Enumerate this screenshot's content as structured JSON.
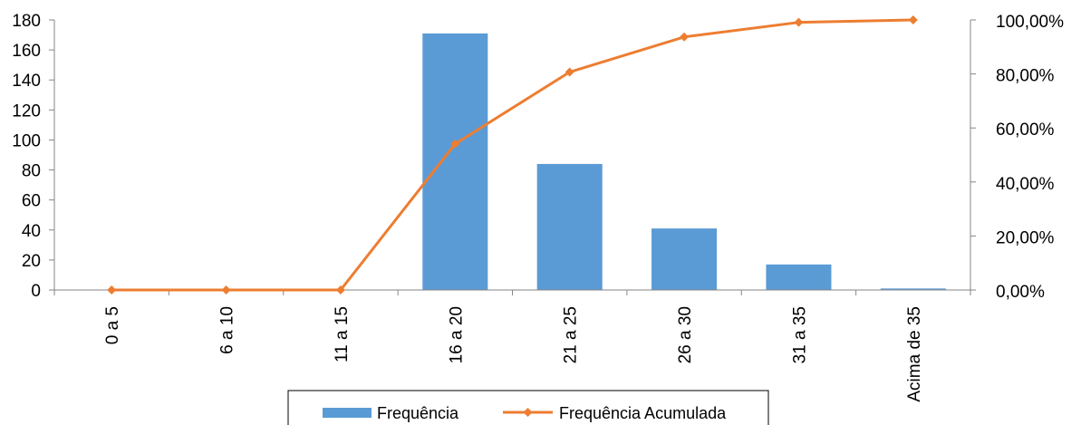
{
  "chart_data": {
    "type": "bar",
    "title": "",
    "xlabel": "",
    "ylabel": "",
    "categories": [
      "0 a 5",
      "6 a 10",
      "11 a 15",
      "16 a 20",
      "21 a 25",
      "26 a 30",
      "31 a 35",
      "Acima de 35"
    ],
    "series": [
      {
        "name": "Frequência",
        "type": "bar",
        "axis": "left",
        "color": "#5B9BD5",
        "values": [
          0,
          0,
          0,
          171,
          84,
          41,
          17,
          1
        ]
      },
      {
        "name": "Frequência Acumulada",
        "type": "line",
        "axis": "right",
        "color": "#ED7D31",
        "values": [
          0,
          0,
          0,
          54.1,
          80.7,
          93.7,
          99.1,
          100
        ]
      }
    ],
    "ylim": [
      0,
      180
    ],
    "y2lim": [
      0,
      100
    ],
    "yticks": [
      "0",
      "20",
      "40",
      "60",
      "80",
      "100",
      "120",
      "140",
      "160",
      "180"
    ],
    "y2ticks": [
      "0,00%",
      "20,00%",
      "40,00%",
      "60,00%",
      "80,00%",
      "100,00%"
    ],
    "grid": false,
    "legend": "bottom"
  }
}
